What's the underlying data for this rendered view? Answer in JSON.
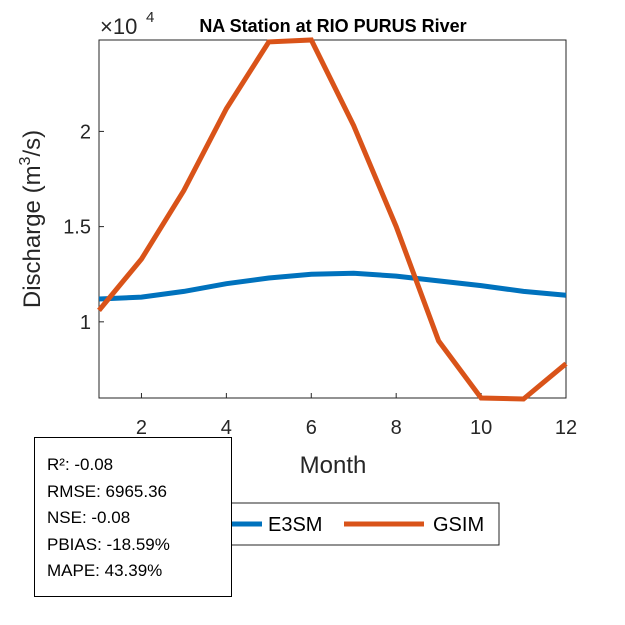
{
  "chart_data": {
    "type": "line",
    "title": "NA  Station at  RIO PURUS  River",
    "xlabel": "Month",
    "ylabel_main": "Discharge (m",
    "ylabel_sup": "3",
    "ylabel_end": "/s)",
    "y_exponent_base": "×10",
    "y_exponent_power": "4",
    "xlim": [
      1,
      12
    ],
    "ylim": [
      0.6,
      2.48
    ],
    "x_ticks": [
      2,
      4,
      6,
      8,
      10,
      12
    ],
    "x_tick_labels": [
      "2",
      "4",
      "6",
      "8",
      "10",
      "12"
    ],
    "y_ticks": [
      1,
      1.5,
      2
    ],
    "y_tick_labels": [
      "1",
      "1.5",
      "2"
    ],
    "x": [
      1,
      2,
      3,
      4,
      5,
      6,
      7,
      8,
      9,
      10,
      11,
      12
    ],
    "series": [
      {
        "name": "E3SM",
        "color": "#0072BD",
        "values": [
          1.12,
          1.13,
          1.16,
          1.2,
          1.23,
          1.25,
          1.255,
          1.24,
          1.215,
          1.19,
          1.16,
          1.14
        ]
      },
      {
        "name": "GSIM",
        "color": "#D95319",
        "values": [
          1.06,
          1.33,
          1.69,
          2.12,
          2.47,
          2.48,
          2.03,
          1.5,
          0.9,
          0.6,
          0.595,
          0.78
        ]
      }
    ],
    "legend": [
      "E3SM",
      "GSIM"
    ],
    "legend_position": "bottom",
    "grid": false
  },
  "stats": {
    "r2": "R²: -0.08",
    "rmse": "RMSE: 6965.36",
    "nse": "NSE: -0.08",
    "pbias": "PBIAS: -18.59%",
    "mape": "MAPE: 43.39%"
  }
}
